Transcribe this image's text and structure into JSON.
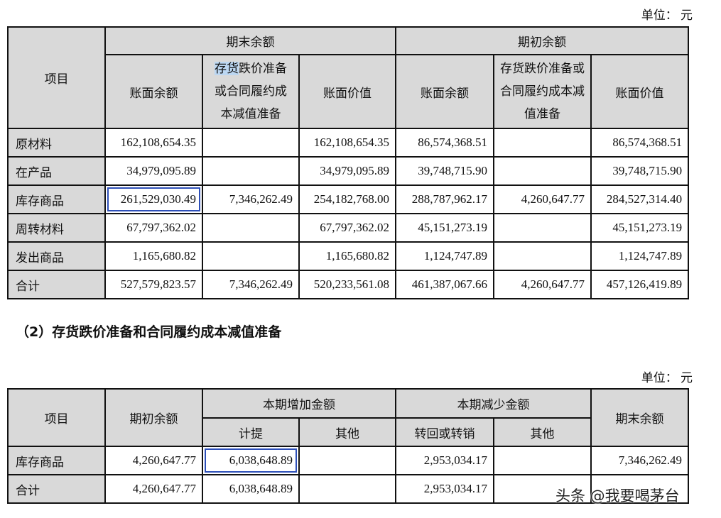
{
  "table1": {
    "unit": "单位：  元",
    "header": {
      "item": "项目",
      "end_group": "期末余额",
      "begin_group": "期初余额",
      "book_balance": "账面余额",
      "provision_hl": "存货",
      "provision_rest": "跌价准备或合同履约成本减值准备",
      "provision": "存货跌价准备或合同履约成本减值准备",
      "book_value": "账面价值"
    },
    "rows": [
      {
        "name": "原材料",
        "end_balance": "162,108,654.35",
        "end_provision": "",
        "end_value": "162,108,654.35",
        "begin_balance": "86,574,368.51",
        "begin_provision": "",
        "begin_value": "86,574,368.51"
      },
      {
        "name": "在产品",
        "end_balance": "34,979,095.89",
        "end_provision": "",
        "end_value": "34,979,095.89",
        "begin_balance": "39,748,715.90",
        "begin_provision": "",
        "begin_value": "39,748,715.90"
      },
      {
        "name": "库存商品",
        "end_balance": "261,529,030.49",
        "end_provision": "7,346,262.49",
        "end_value": "254,182,768.00",
        "begin_balance": "288,787,962.17",
        "begin_provision": "4,260,647.77",
        "begin_value": "284,527,314.40"
      },
      {
        "name": "周转材料",
        "end_balance": "67,797,362.02",
        "end_provision": "",
        "end_value": "67,797,362.02",
        "begin_balance": "45,151,273.19",
        "begin_provision": "",
        "begin_value": "45,151,273.19"
      },
      {
        "name": "发出商品",
        "end_balance": "1,165,680.82",
        "end_provision": "",
        "end_value": "1,165,680.82",
        "begin_balance": "1,124,747.89",
        "begin_provision": "",
        "begin_value": "1,124,747.89"
      },
      {
        "name": "合计",
        "end_balance": "527,579,823.57",
        "end_provision": "7,346,262.49",
        "end_value": "520,233,561.08",
        "begin_balance": "461,387,067.66",
        "begin_provision": "4,260,647.77",
        "begin_value": "457,126,419.89"
      }
    ]
  },
  "section2_title": "（2）存货跌价准备和合同履约成本减值准备",
  "table2": {
    "unit": "单位：  元",
    "header": {
      "item": "项目",
      "begin": "期初余额",
      "increase": "本期增加金额",
      "accrue": "计提",
      "other1": "其他",
      "decrease": "本期减少金额",
      "reverse": "转回或转销",
      "other2": "其他",
      "end": "期末余额"
    },
    "rows": [
      {
        "name": "库存商品",
        "begin": "4,260,647.77",
        "accrue": "6,038,648.89",
        "other_inc": "",
        "reverse": "2,953,034.17",
        "other_dec": "",
        "end": "7,346,262.49"
      },
      {
        "name": "合计",
        "begin": "4,260,647.77",
        "accrue": "6,038,648.89",
        "other_inc": "",
        "reverse": "2,953,034.17",
        "other_dec": "",
        "end": ""
      }
    ]
  },
  "watermark": "头条 @我要喝茅台"
}
